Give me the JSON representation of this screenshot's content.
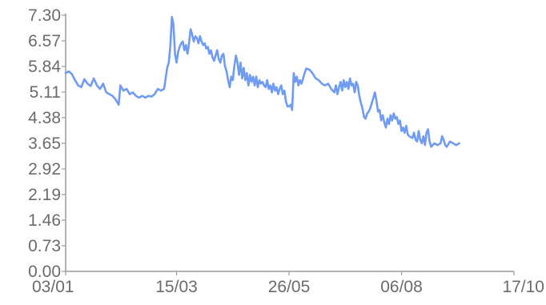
{
  "chart_data": {
    "type": "line",
    "title": "",
    "xlabel": "",
    "ylabel": "",
    "ylim": [
      0,
      7.3
    ],
    "grid": false,
    "legend": "none",
    "y_ticks": [
      "0.00",
      "0.73",
      "1.46",
      "2.19",
      "2.92",
      "3.65",
      "4.38",
      "5.11",
      "5.84",
      "6.57",
      "7.30"
    ],
    "x_ticks": [
      {
        "label": "03/01",
        "day": 0
      },
      {
        "label": "15/03",
        "day": 71
      },
      {
        "label": "26/05",
        "day": 143
      },
      {
        "label": "06/08",
        "day": 215
      },
      {
        "label": "17/10",
        "day": 287
      }
    ],
    "colors": {
      "series": "#6f9bf2",
      "axis": "#9a9a9a",
      "text": "#6b6b6b"
    },
    "series": [
      {
        "color": "#6f9bf2",
        "points": [
          [
            0,
            5.65
          ],
          [
            2,
            5.7
          ],
          [
            4,
            5.62
          ],
          [
            6,
            5.45
          ],
          [
            8,
            5.3
          ],
          [
            10,
            5.25
          ],
          [
            12,
            5.48
          ],
          [
            14,
            5.35
          ],
          [
            16,
            5.28
          ],
          [
            18,
            5.5
          ],
          [
            20,
            5.3
          ],
          [
            22,
            5.2
          ],
          [
            24,
            5.35
          ],
          [
            26,
            5.1
          ],
          [
            28,
            5.05
          ],
          [
            30,
            5.0
          ],
          [
            32,
            4.9
          ],
          [
            34,
            4.75
          ],
          [
            35,
            5.3
          ],
          [
            37,
            5.15
          ],
          [
            39,
            5.2
          ],
          [
            41,
            5.05
          ],
          [
            43,
            5.1
          ],
          [
            45,
            5.0
          ],
          [
            47,
            4.95
          ],
          [
            49,
            5.0
          ],
          [
            51,
            4.95
          ],
          [
            53,
            5.0
          ],
          [
            55,
            4.98
          ],
          [
            57,
            5.05
          ],
          [
            59,
            5.2
          ],
          [
            61,
            5.15
          ],
          [
            63,
            5.2
          ],
          [
            64,
            5.5
          ],
          [
            65,
            5.8
          ],
          [
            66,
            5.95
          ],
          [
            67,
            6.4
          ],
          [
            68,
            7.25
          ],
          [
            69,
            7.05
          ],
          [
            70,
            6.2
          ],
          [
            71,
            5.95
          ],
          [
            72,
            6.25
          ],
          [
            73,
            6.4
          ],
          [
            74,
            6.5
          ],
          [
            75,
            6.55
          ],
          [
            76,
            6.3
          ],
          [
            77,
            6.45
          ],
          [
            78,
            6.2
          ],
          [
            79,
            6.5
          ],
          [
            80,
            6.9
          ],
          [
            81,
            6.75
          ],
          [
            82,
            6.55
          ],
          [
            83,
            6.7
          ],
          [
            84,
            6.65
          ],
          [
            85,
            6.5
          ],
          [
            86,
            6.7
          ],
          [
            87,
            6.55
          ],
          [
            88,
            6.45
          ],
          [
            89,
            6.5
          ],
          [
            90,
            6.35
          ],
          [
            91,
            6.4
          ],
          [
            92,
            6.2
          ],
          [
            93,
            6.3
          ],
          [
            94,
            6.1
          ],
          [
            95,
            6.0
          ],
          [
            96,
            6.15
          ],
          [
            97,
            6.3
          ],
          [
            98,
            6.05
          ],
          [
            99,
            5.95
          ],
          [
            100,
            6.15
          ],
          [
            101,
            6.2
          ],
          [
            102,
            5.85
          ],
          [
            103,
            5.7
          ],
          [
            104,
            5.45
          ],
          [
            105,
            5.25
          ],
          [
            106,
            5.55
          ],
          [
            107,
            5.45
          ],
          [
            108,
            5.85
          ],
          [
            109,
            6.15
          ],
          [
            110,
            5.95
          ],
          [
            111,
            5.6
          ],
          [
            112,
            5.95
          ],
          [
            113,
            5.5
          ],
          [
            114,
            5.8
          ],
          [
            115,
            5.45
          ],
          [
            116,
            5.65
          ],
          [
            117,
            5.3
          ],
          [
            118,
            5.6
          ],
          [
            119,
            5.4
          ],
          [
            120,
            5.55
          ],
          [
            121,
            5.3
          ],
          [
            122,
            5.55
          ],
          [
            123,
            5.25
          ],
          [
            124,
            5.45
          ],
          [
            125,
            5.35
          ],
          [
            126,
            5.4
          ],
          [
            127,
            5.3
          ],
          [
            128,
            5.25
          ],
          [
            129,
            5.45
          ],
          [
            130,
            5.2
          ],
          [
            131,
            5.3
          ],
          [
            132,
            5.1
          ],
          [
            133,
            5.35
          ],
          [
            134,
            5.15
          ],
          [
            135,
            5.25
          ],
          [
            136,
            5.05
          ],
          [
            137,
            5.2
          ],
          [
            138,
            5.3
          ],
          [
            139,
            5.05
          ],
          [
            140,
            5.15
          ],
          [
            141,
            4.85
          ],
          [
            142,
            4.7
          ],
          [
            143,
            4.7
          ],
          [
            144,
            4.75
          ],
          [
            145,
            4.6
          ],
          [
            146,
            5.65
          ],
          [
            147,
            5.4
          ],
          [
            148,
            5.55
          ],
          [
            149,
            5.3
          ],
          [
            150,
            5.45
          ],
          [
            151,
            5.35
          ],
          [
            152,
            5.5
          ],
          [
            153,
            5.65
          ],
          [
            154,
            5.78
          ],
          [
            156,
            5.75
          ],
          [
            158,
            5.65
          ],
          [
            160,
            5.5
          ],
          [
            162,
            5.45
          ],
          [
            164,
            5.35
          ],
          [
            166,
            5.3
          ],
          [
            168,
            5.35
          ],
          [
            170,
            5.2
          ],
          [
            172,
            5.1
          ],
          [
            173,
            5.3
          ],
          [
            174,
            5.05
          ],
          [
            175,
            5.25
          ],
          [
            176,
            5.4
          ],
          [
            177,
            5.15
          ],
          [
            178,
            5.45
          ],
          [
            179,
            5.25
          ],
          [
            180,
            5.4
          ],
          [
            181,
            5.2
          ],
          [
            182,
            5.5
          ],
          [
            183,
            5.3
          ],
          [
            184,
            5.35
          ],
          [
            185,
            5.1
          ],
          [
            186,
            5.4
          ],
          [
            187,
            5.3
          ],
          [
            188,
            5.0
          ],
          [
            189,
            4.8
          ],
          [
            190,
            4.65
          ],
          [
            191,
            4.4
          ],
          [
            192,
            4.35
          ],
          [
            193,
            4.5
          ],
          [
            194,
            4.55
          ],
          [
            195,
            4.65
          ],
          [
            196,
            4.8
          ],
          [
            197,
            4.95
          ],
          [
            198,
            5.1
          ],
          [
            199,
            4.85
          ],
          [
            200,
            4.55
          ],
          [
            201,
            4.6
          ],
          [
            202,
            4.3
          ],
          [
            203,
            4.45
          ],
          [
            204,
            4.25
          ],
          [
            205,
            4.1
          ],
          [
            206,
            4.35
          ],
          [
            207,
            4.2
          ],
          [
            208,
            4.45
          ],
          [
            209,
            4.3
          ],
          [
            210,
            4.5
          ],
          [
            211,
            4.35
          ],
          [
            212,
            4.4
          ],
          [
            213,
            4.2
          ],
          [
            214,
            4.3
          ],
          [
            215,
            4.0
          ],
          [
            216,
            4.1
          ],
          [
            217,
            3.95
          ],
          [
            218,
            4.15
          ],
          [
            219,
            3.9
          ],
          [
            220,
            3.85
          ],
          [
            222,
            3.8
          ],
          [
            223,
            3.95
          ],
          [
            224,
            3.75
          ],
          [
            225,
            3.7
          ],
          [
            226,
            4.0
          ],
          [
            227,
            3.75
          ],
          [
            228,
            3.65
          ],
          [
            229,
            3.85
          ],
          [
            230,
            3.6
          ],
          [
            231,
            3.95
          ],
          [
            232,
            4.05
          ],
          [
            233,
            3.7
          ],
          [
            234,
            3.55
          ],
          [
            236,
            3.65
          ],
          [
            238,
            3.6
          ],
          [
            240,
            3.65
          ],
          [
            241,
            3.85
          ],
          [
            242,
            3.75
          ],
          [
            243,
            3.6
          ],
          [
            244,
            3.55
          ],
          [
            246,
            3.7
          ],
          [
            248,
            3.65
          ],
          [
            250,
            3.6
          ],
          [
            252,
            3.65
          ]
        ]
      }
    ]
  }
}
